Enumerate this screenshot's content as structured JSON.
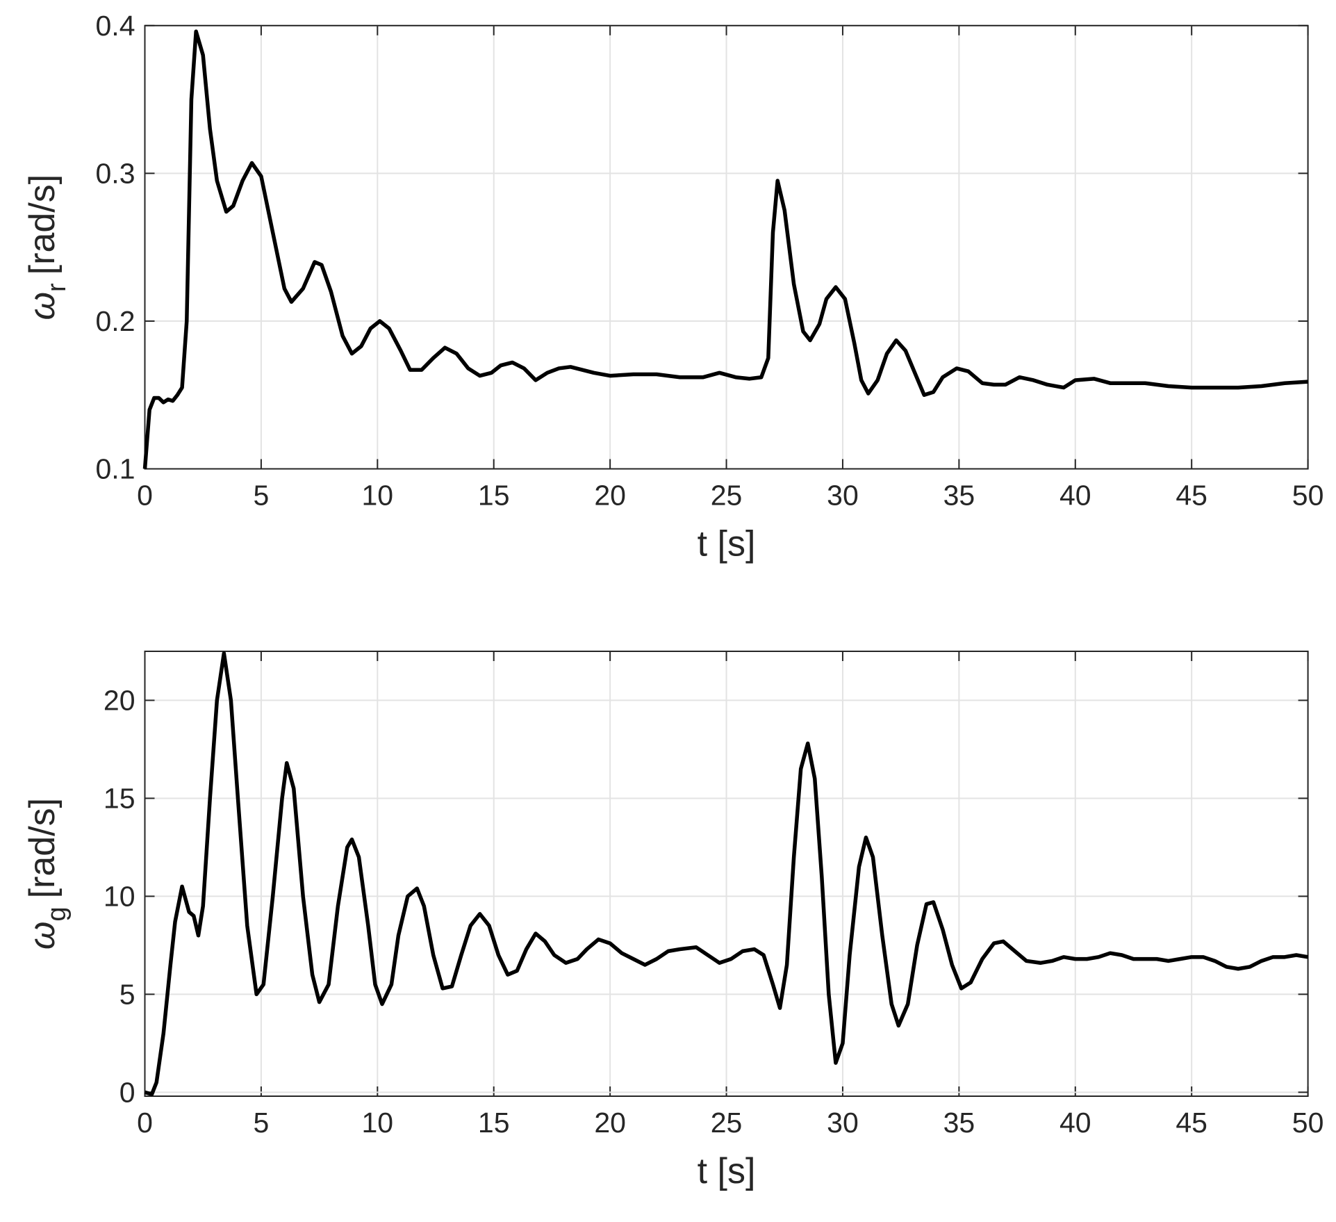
{
  "chart_data": [
    {
      "type": "line",
      "color": "#000000",
      "grid": true,
      "ylabel": {
        "symbol": "ω",
        "subscript": "r",
        "unit": "[rad/s]"
      },
      "xlabel": "t [s]",
      "xlim": [
        0,
        50
      ],
      "xticks": [
        0,
        5,
        10,
        15,
        20,
        25,
        30,
        35,
        40,
        45,
        50
      ],
      "ylim": [
        0.1,
        0.4
      ],
      "yticks": [
        0.1,
        0.2,
        0.3,
        0.4
      ],
      "x": [
        0,
        0.2,
        0.4,
        0.6,
        0.8,
        1.0,
        1.2,
        1.4,
        1.6,
        1.8,
        2.0,
        2.2,
        2.5,
        2.8,
        3.1,
        3.5,
        3.8,
        4.2,
        4.6,
        5.0,
        5.5,
        6.0,
        6.3,
        6.8,
        7.3,
        7.6,
        8.0,
        8.5,
        8.9,
        9.3,
        9.7,
        10.1,
        10.5,
        11.0,
        11.4,
        11.9,
        12.4,
        12.9,
        13.4,
        13.9,
        14.4,
        14.9,
        15.3,
        15.8,
        16.3,
        16.8,
        17.3,
        17.8,
        18.3,
        18.8,
        19.3,
        20,
        21,
        22,
        23,
        24,
        24.7,
        25.4,
        26,
        26.5,
        26.8,
        27.0,
        27.2,
        27.5,
        27.9,
        28.3,
        28.6,
        29.0,
        29.3,
        29.7,
        30.1,
        30.5,
        30.8,
        31.1,
        31.5,
        31.9,
        32.3,
        32.7,
        33.1,
        33.5,
        33.9,
        34.3,
        34.9,
        35.4,
        36,
        36.5,
        37,
        37.6,
        38.2,
        38.8,
        39.5,
        40,
        40.8,
        41.5,
        42.3,
        43,
        44,
        45,
        46,
        47,
        48,
        49,
        50
      ],
      "values": [
        0.1,
        0.14,
        0.148,
        0.148,
        0.145,
        0.147,
        0.146,
        0.15,
        0.155,
        0.2,
        0.35,
        0.396,
        0.38,
        0.33,
        0.295,
        0.274,
        0.278,
        0.295,
        0.307,
        0.298,
        0.26,
        0.222,
        0.213,
        0.222,
        0.24,
        0.238,
        0.22,
        0.19,
        0.178,
        0.183,
        0.195,
        0.2,
        0.195,
        0.18,
        0.167,
        0.167,
        0.175,
        0.182,
        0.178,
        0.168,
        0.163,
        0.165,
        0.17,
        0.172,
        0.168,
        0.16,
        0.165,
        0.168,
        0.169,
        0.167,
        0.165,
        0.163,
        0.164,
        0.164,
        0.162,
        0.162,
        0.165,
        0.162,
        0.161,
        0.162,
        0.175,
        0.26,
        0.295,
        0.275,
        0.225,
        0.193,
        0.187,
        0.198,
        0.215,
        0.223,
        0.215,
        0.185,
        0.16,
        0.151,
        0.16,
        0.178,
        0.187,
        0.18,
        0.165,
        0.15,
        0.152,
        0.162,
        0.168,
        0.166,
        0.158,
        0.157,
        0.157,
        0.162,
        0.16,
        0.157,
        0.155,
        0.16,
        0.161,
        0.158,
        0.158,
        0.158,
        0.156,
        0.155,
        0.155,
        0.155,
        0.156,
        0.158,
        0.159
      ]
    },
    {
      "type": "line",
      "color": "#000000",
      "grid": true,
      "ylabel": {
        "symbol": "ω",
        "subscript": "g",
        "unit": "[rad/s]"
      },
      "xlabel": "t [s]",
      "xlim": [
        0,
        50
      ],
      "xticks": [
        0,
        5,
        10,
        15,
        20,
        25,
        30,
        35,
        40,
        45,
        50
      ],
      "ylim": [
        -0.2,
        22.5
      ],
      "yticks": [
        0,
        5,
        10,
        15,
        20
      ],
      "x": [
        0,
        0.3,
        0.5,
        0.8,
        1.1,
        1.3,
        1.6,
        1.9,
        2.1,
        2.3,
        2.5,
        2.8,
        3.1,
        3.4,
        3.7,
        4.0,
        4.4,
        4.8,
        5.1,
        5.5,
        5.9,
        6.1,
        6.4,
        6.8,
        7.2,
        7.5,
        7.9,
        8.3,
        8.7,
        8.9,
        9.2,
        9.6,
        9.9,
        10.2,
        10.6,
        10.9,
        11.3,
        11.7,
        12.0,
        12.4,
        12.8,
        13.2,
        13.6,
        14.0,
        14.4,
        14.8,
        15.2,
        15.6,
        16.0,
        16.4,
        16.8,
        17.2,
        17.6,
        18.1,
        18.6,
        19.0,
        19.5,
        20.0,
        20.5,
        21.0,
        21.5,
        22.0,
        22.5,
        23.0,
        23.7,
        24.2,
        24.7,
        25.2,
        25.7,
        26.2,
        26.6,
        27.0,
        27.3,
        27.6,
        27.9,
        28.2,
        28.5,
        28.8,
        29.1,
        29.4,
        29.7,
        30.0,
        30.3,
        30.7,
        31.0,
        31.3,
        31.7,
        32.1,
        32.4,
        32.8,
        33.2,
        33.6,
        33.9,
        34.3,
        34.7,
        35.1,
        35.5,
        36.0,
        36.5,
        36.9,
        37.4,
        37.9,
        38.5,
        39.0,
        39.5,
        40.0,
        40.5,
        41,
        41.5,
        42,
        42.5,
        43,
        43.5,
        44,
        44.5,
        45,
        45.5,
        46,
        46.5,
        47,
        47.5,
        48,
        48.5,
        49,
        49.5,
        50
      ],
      "values": [
        0,
        -0.1,
        0.5,
        3,
        6.5,
        8.7,
        10.5,
        9.2,
        9.0,
        8.0,
        9.5,
        15,
        20,
        22.4,
        20,
        15,
        8.5,
        5.0,
        5.5,
        10,
        15,
        16.8,
        15.5,
        10,
        6,
        4.6,
        5.5,
        9.5,
        12.5,
        12.9,
        12,
        8.5,
        5.5,
        4.5,
        5.5,
        8,
        10,
        10.4,
        9.5,
        7,
        5.3,
        5.4,
        7,
        8.5,
        9.1,
        8.5,
        7,
        6.0,
        6.2,
        7.3,
        8.1,
        7.7,
        7.0,
        6.6,
        6.8,
        7.3,
        7.8,
        7.6,
        7.1,
        6.8,
        6.5,
        6.8,
        7.2,
        7.3,
        7.4,
        7.0,
        6.6,
        6.8,
        7.2,
        7.3,
        7.0,
        5.5,
        4.3,
        6.5,
        12,
        16.5,
        17.8,
        16,
        11,
        5,
        1.5,
        2.5,
        7,
        11.5,
        13,
        12,
        8,
        4.5,
        3.4,
        4.5,
        7.5,
        9.6,
        9.7,
        8.3,
        6.5,
        5.3,
        5.6,
        6.8,
        7.6,
        7.7,
        7.2,
        6.7,
        6.6,
        6.7,
        6.9,
        6.8,
        6.8,
        6.9,
        7.1,
        7.0,
        6.8,
        6.8,
        6.8,
        6.7,
        6.8,
        6.9,
        6.9,
        6.7,
        6.4,
        6.3,
        6.4,
        6.7,
        6.9,
        6.9,
        7.0,
        6.9
      ]
    }
  ]
}
